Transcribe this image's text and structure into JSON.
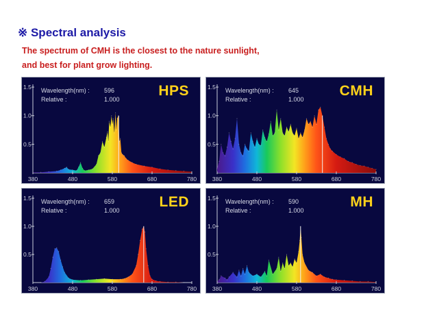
{
  "header": {
    "title": "※ Spectral analysis",
    "line1": "The spectrum of CMH is the closest to the nature sunlight,",
    "line2": "and best for plant grow lighting."
  },
  "charts": {
    "hps": {
      "name": "HPS",
      "wavelength_label": "Wavelength(nm) :",
      "wavelength_value": "596",
      "relative_label": "Relative :",
      "relative_value": "1.000"
    },
    "cmh": {
      "name": "CMH",
      "wavelength_label": "Wavelength(nm) :",
      "wavelength_value": "645",
      "relative_label": "Relative :",
      "relative_value": "1.000"
    },
    "led": {
      "name": "LED",
      "wavelength_label": "Wavelength(nm) :",
      "wavelength_value": "659",
      "relative_label": "Relative :",
      "relative_value": "1.000"
    },
    "mh": {
      "name": "MH",
      "wavelength_label": "Wavelength(nm) :",
      "wavelength_value": "590",
      "relative_label": "Relative :",
      "relative_value": "1.000"
    }
  },
  "axes": {
    "x_ticks": [
      "380",
      "480",
      "580",
      "680",
      "780"
    ],
    "y_ticks": [
      "1.5",
      "1.0",
      "0.5"
    ]
  },
  "chart_data": [
    {
      "type": "area",
      "title": "HPS",
      "xlim": [
        380,
        780
      ],
      "ylim": [
        0,
        1.5
      ],
      "x": [
        380,
        400,
        420,
        440,
        450,
        460,
        465,
        470,
        480,
        490,
        495,
        500,
        505,
        510,
        520,
        530,
        540,
        545,
        550,
        555,
        560,
        565,
        568,
        570,
        572,
        575,
        578,
        580,
        582,
        585,
        588,
        590,
        592,
        595,
        598,
        600,
        603,
        606,
        610,
        615,
        620,
        630,
        640,
        660,
        680,
        700,
        720,
        740,
        760,
        780
      ],
      "y": [
        0.01,
        0.01,
        0.02,
        0.03,
        0.05,
        0.08,
        0.1,
        0.06,
        0.05,
        0.04,
        0.1,
        0.18,
        0.08,
        0.04,
        0.05,
        0.07,
        0.15,
        0.3,
        0.35,
        0.55,
        0.45,
        0.62,
        0.72,
        0.55,
        0.9,
        0.8,
        1.0,
        0.85,
        0.95,
        0.7,
        1.05,
        0.75,
        0.95,
        1.0,
        0.55,
        0.6,
        0.35,
        0.32,
        0.3,
        0.25,
        0.22,
        0.18,
        0.15,
        0.12,
        0.1,
        0.07,
        0.05,
        0.04,
        0.03,
        0.02
      ],
      "cursor_x": 596
    },
    {
      "type": "area",
      "title": "CMH",
      "xlim": [
        380,
        780
      ],
      "ylim": [
        0,
        1.5
      ],
      "x": [
        380,
        385,
        390,
        395,
        400,
        405,
        410,
        415,
        420,
        425,
        430,
        435,
        440,
        445,
        450,
        455,
        460,
        465,
        470,
        475,
        480,
        485,
        490,
        495,
        500,
        505,
        510,
        515,
        520,
        525,
        530,
        535,
        540,
        545,
        550,
        555,
        560,
        565,
        570,
        575,
        580,
        585,
        590,
        595,
        600,
        605,
        610,
        615,
        620,
        625,
        630,
        635,
        640,
        645,
        650,
        655,
        660,
        665,
        670,
        680,
        690,
        700,
        710,
        720,
        730,
        740,
        750,
        760,
        770,
        780
      ],
      "y": [
        0.08,
        0.2,
        0.5,
        0.35,
        0.3,
        0.45,
        0.7,
        0.55,
        0.42,
        0.6,
        0.95,
        0.5,
        0.35,
        0.3,
        0.5,
        0.42,
        0.38,
        0.7,
        0.55,
        0.45,
        0.6,
        0.5,
        0.48,
        0.75,
        0.62,
        0.55,
        0.68,
        0.9,
        0.65,
        0.7,
        1.1,
        0.75,
        0.95,
        0.7,
        0.65,
        0.8,
        0.72,
        0.85,
        0.7,
        0.65,
        0.78,
        0.6,
        0.7,
        0.62,
        0.75,
        0.95,
        0.85,
        0.9,
        0.8,
        1.0,
        0.85,
        1.1,
        1.15,
        1.0,
        0.8,
        0.6,
        0.5,
        0.42,
        0.38,
        0.32,
        0.28,
        0.25,
        0.2,
        0.18,
        0.15,
        0.13,
        0.12,
        0.1,
        0.08,
        0.06
      ],
      "cursor_x": 645
    },
    {
      "type": "area",
      "title": "LED",
      "xlim": [
        380,
        780
      ],
      "ylim": [
        0,
        1.5
      ],
      "x": [
        380,
        400,
        410,
        420,
        425,
        430,
        435,
        440,
        445,
        450,
        455,
        460,
        470,
        480,
        500,
        520,
        540,
        560,
        580,
        600,
        610,
        620,
        630,
        640,
        645,
        650,
        655,
        659,
        662,
        665,
        670,
        675,
        680,
        690,
        700,
        720,
        740,
        760,
        780
      ],
      "y": [
        0.0,
        0.0,
        0.02,
        0.1,
        0.25,
        0.45,
        0.6,
        0.62,
        0.55,
        0.4,
        0.28,
        0.18,
        0.08,
        0.05,
        0.04,
        0.05,
        0.06,
        0.07,
        0.06,
        0.06,
        0.07,
        0.1,
        0.15,
        0.3,
        0.5,
        0.75,
        0.95,
        1.0,
        0.9,
        0.6,
        0.3,
        0.12,
        0.06,
        0.03,
        0.02,
        0.01,
        0.01,
        0.0,
        0.0
      ],
      "cursor_x": 659
    },
    {
      "type": "area",
      "title": "MH",
      "xlim": [
        380,
        780
      ],
      "ylim": [
        0,
        1.5
      ],
      "x": [
        380,
        385,
        390,
        400,
        405,
        410,
        420,
        430,
        435,
        440,
        445,
        450,
        455,
        460,
        470,
        480,
        490,
        500,
        505,
        510,
        520,
        530,
        535,
        540,
        545,
        550,
        555,
        560,
        565,
        570,
        575,
        580,
        585,
        588,
        590,
        592,
        595,
        600,
        610,
        620,
        630,
        640,
        650,
        660,
        670,
        680,
        700,
        720,
        740,
        760,
        780
      ],
      "y": [
        0.02,
        0.05,
        0.12,
        0.08,
        0.05,
        0.1,
        0.18,
        0.1,
        0.22,
        0.12,
        0.25,
        0.15,
        0.3,
        0.18,
        0.12,
        0.15,
        0.1,
        0.2,
        0.12,
        0.4,
        0.15,
        0.25,
        0.45,
        0.2,
        0.35,
        0.25,
        0.5,
        0.3,
        0.35,
        0.28,
        0.42,
        0.35,
        0.55,
        0.75,
        1.0,
        0.8,
        0.5,
        0.35,
        0.22,
        0.18,
        0.12,
        0.15,
        0.1,
        0.08,
        0.06,
        0.05,
        0.04,
        0.03,
        0.02,
        0.02,
        0.01
      ],
      "cursor_x": 590
    }
  ]
}
